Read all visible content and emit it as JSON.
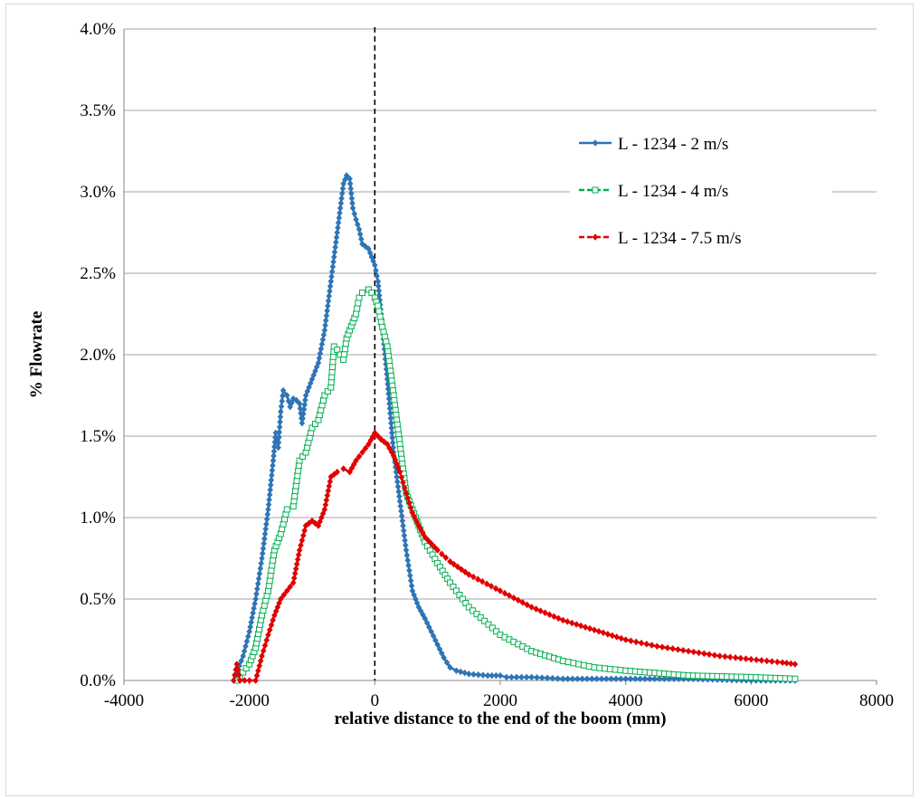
{
  "chart_data": {
    "type": "line",
    "xlabel": "relative distance to the end of the boom (mm)",
    "ylabel": "% Flowrate",
    "xlim": [
      -4000,
      8000
    ],
    "ylim": [
      0,
      0.04
    ],
    "x_ticks": [
      "-4000",
      "-2000",
      "0",
      "2000",
      "4000",
      "6000",
      "8000"
    ],
    "y_ticks": [
      "0.0%",
      "0.5%",
      "1.0%",
      "1.5%",
      "2.0%",
      "2.5%",
      "3.0%",
      "3.5%",
      "4.0%"
    ],
    "grid": "horizontal",
    "legend_position": "top-right",
    "vline": {
      "x": 0,
      "style": "dashed",
      "color": "#000000"
    },
    "series": [
      {
        "name": "L - 1234 - 2 m/s",
        "color": "#2e75b6",
        "dash": "solid",
        "marker": "diamond",
        "points": [
          [
            -2250,
            0.0
          ],
          [
            -2100,
            0.0015
          ],
          [
            -2000,
            0.003
          ],
          [
            -1900,
            0.005
          ],
          [
            -1800,
            0.0075
          ],
          [
            -1700,
            0.0105
          ],
          [
            -1620,
            0.0135
          ],
          [
            -1580,
            0.0152
          ],
          [
            -1540,
            0.0143
          ],
          [
            -1500,
            0.0165
          ],
          [
            -1460,
            0.0178
          ],
          [
            -1400,
            0.0175
          ],
          [
            -1350,
            0.0168
          ],
          [
            -1300,
            0.0173
          ],
          [
            -1250,
            0.0172
          ],
          [
            -1200,
            0.017
          ],
          [
            -1160,
            0.0158
          ],
          [
            -1100,
            0.0175
          ],
          [
            -1000,
            0.0185
          ],
          [
            -900,
            0.0195
          ],
          [
            -800,
            0.0215
          ],
          [
            -700,
            0.0245
          ],
          [
            -600,
            0.0275
          ],
          [
            -550,
            0.029
          ],
          [
            -500,
            0.0305
          ],
          [
            -450,
            0.031
          ],
          [
            -400,
            0.0308
          ],
          [
            -350,
            0.029
          ],
          [
            -300,
            0.0283
          ],
          [
            -250,
            0.0277
          ],
          [
            -200,
            0.0268
          ],
          [
            -100,
            0.0265
          ],
          [
            0,
            0.0255
          ],
          [
            50,
            0.0245
          ],
          [
            100,
            0.0225
          ],
          [
            200,
            0.0185
          ],
          [
            300,
            0.014
          ],
          [
            400,
            0.011
          ],
          [
            500,
            0.008
          ],
          [
            600,
            0.0055
          ],
          [
            700,
            0.0045
          ],
          [
            800,
            0.0038
          ],
          [
            900,
            0.003
          ],
          [
            1000,
            0.0022
          ],
          [
            1100,
            0.0014
          ],
          [
            1200,
            0.0008
          ],
          [
            1300,
            0.0006
          ],
          [
            1500,
            0.0004
          ],
          [
            1800,
            0.0003
          ],
          [
            2000,
            0.0003
          ],
          [
            2100,
            0.0002
          ],
          [
            2500,
            0.0002
          ],
          [
            3000,
            0.0001
          ],
          [
            4000,
            0.0001
          ],
          [
            5000,
            0.0001
          ],
          [
            6000,
            0.0
          ],
          [
            6700,
            0.0
          ]
        ]
      },
      {
        "name": "L - 1234 - 4 m/s",
        "color": "#00b050",
        "dash": "dashed",
        "marker": "square",
        "points": [
          [
            -2200,
            0.0
          ],
          [
            -2100,
            0.0005
          ],
          [
            -2000,
            0.001
          ],
          [
            -1900,
            0.002
          ],
          [
            -1800,
            0.004
          ],
          [
            -1700,
            0.0055
          ],
          [
            -1600,
            0.008
          ],
          [
            -1500,
            0.009
          ],
          [
            -1400,
            0.0105
          ],
          [
            -1300,
            0.0107
          ],
          [
            -1200,
            0.0135
          ],
          [
            -1100,
            0.014
          ],
          [
            -1000,
            0.0155
          ],
          [
            -900,
            0.016
          ],
          [
            -800,
            0.0175
          ],
          [
            -700,
            0.018
          ],
          [
            -650,
            0.0205
          ],
          [
            -600,
            0.0203
          ],
          [
            -500,
            0.0197
          ],
          [
            -450,
            0.021
          ],
          [
            -400,
            0.0215
          ],
          [
            -300,
            0.0225
          ],
          [
            -250,
            0.0235
          ],
          [
            -200,
            0.0238
          ],
          [
            -100,
            0.024
          ],
          [
            -50,
            0.0238
          ],
          [
            0,
            0.0235
          ],
          [
            50,
            0.023
          ],
          [
            100,
            0.022
          ],
          [
            200,
            0.0205
          ],
          [
            300,
            0.0175
          ],
          [
            400,
            0.0145
          ],
          [
            500,
            0.0115
          ],
          [
            600,
            0.0105
          ],
          [
            700,
            0.0095
          ],
          [
            800,
            0.0085
          ],
          [
            1000,
            0.0072
          ],
          [
            1200,
            0.006
          ],
          [
            1500,
            0.0045
          ],
          [
            2000,
            0.0028
          ],
          [
            2500,
            0.0018
          ],
          [
            3000,
            0.0012
          ],
          [
            3500,
            0.0008
          ],
          [
            4000,
            0.0006
          ],
          [
            5000,
            0.0003
          ],
          [
            6000,
            0.0002
          ],
          [
            6700,
            0.0001
          ]
        ]
      },
      {
        "name": "L - 1234 - 7.5 m/s",
        "color": "#e00000",
        "dash": "dashed",
        "marker": "diamond",
        "points": [
          [
            -2250,
            0.0
          ],
          [
            -2200,
            0.001
          ],
          [
            -2150,
            0.0
          ],
          [
            -2000,
            0.0
          ],
          [
            -1900,
            0.0
          ],
          [
            -1800,
            0.0015
          ],
          [
            -1700,
            0.0028
          ],
          [
            -1600,
            0.004
          ],
          [
            -1500,
            0.005
          ],
          [
            -1400,
            0.0055
          ],
          [
            -1300,
            0.006
          ],
          [
            -1200,
            0.008
          ],
          [
            -1100,
            0.0095
          ],
          [
            -1000,
            0.0098
          ],
          [
            -900,
            0.0095
          ],
          [
            -800,
            0.0105
          ],
          [
            -700,
            0.0125
          ],
          [
            -600,
            0.0128
          ],
          [
            -500,
            0.013
          ],
          [
            -400,
            0.0128
          ],
          [
            -300,
            0.0135
          ],
          [
            -200,
            0.014
          ],
          [
            -100,
            0.0145
          ],
          [
            0,
            0.0152
          ],
          [
            100,
            0.0148
          ],
          [
            200,
            0.0145
          ],
          [
            300,
            0.0138
          ],
          [
            400,
            0.0128
          ],
          [
            500,
            0.0115
          ],
          [
            600,
            0.0103
          ],
          [
            700,
            0.0095
          ],
          [
            800,
            0.0088
          ],
          [
            1000,
            0.008
          ],
          [
            1200,
            0.0073
          ],
          [
            1500,
            0.0065
          ],
          [
            2000,
            0.0055
          ],
          [
            2500,
            0.0045
          ],
          [
            3000,
            0.0037
          ],
          [
            3500,
            0.0031
          ],
          [
            4000,
            0.0025
          ],
          [
            4500,
            0.0021
          ],
          [
            5000,
            0.0018
          ],
          [
            5500,
            0.0015
          ],
          [
            6000,
            0.0013
          ],
          [
            6500,
            0.0011
          ],
          [
            6700,
            0.001
          ]
        ]
      }
    ]
  }
}
